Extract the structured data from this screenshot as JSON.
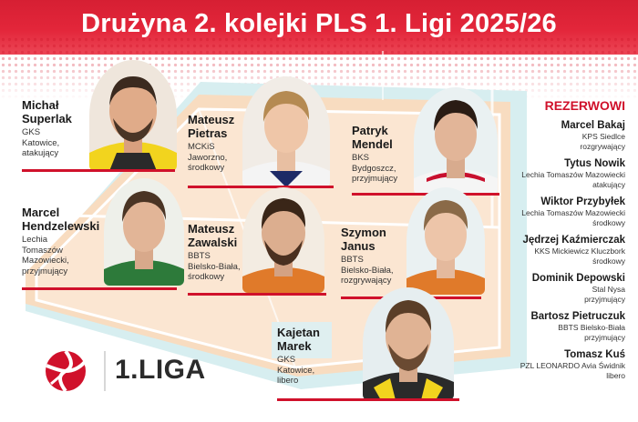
{
  "header": {
    "title": "Drużyna 2. kolejki PLS 1. Ligi 2025/26"
  },
  "starters": [
    {
      "name1": "Michał",
      "name2": "Superlak",
      "desc": [
        "GKS",
        "Katowice,",
        "atakujący"
      ]
    },
    {
      "name1": "Mateusz",
      "name2": "Pietras",
      "desc": [
        "MCKiS",
        "Jaworzno,",
        "środkowy"
      ]
    },
    {
      "name1": "Patryk",
      "name2": "Mendel",
      "desc": [
        "BKS",
        "Bydgoszcz,",
        "przyjmujący"
      ]
    },
    {
      "name1": "Marcel",
      "name2": "Hendzelewski",
      "desc": [
        "Lechia",
        "Tomaszów",
        "Mazowiecki,",
        "przyjmujący"
      ]
    },
    {
      "name1": "Mateusz",
      "name2": "Zawalski",
      "desc": [
        "BBTS",
        "Bielsko-Biała,",
        "środkowy"
      ]
    },
    {
      "name1": "Szymon",
      "name2": "Janus",
      "desc": [
        "BBTS",
        "Bielsko-Biała,",
        "rozgrywający"
      ]
    },
    {
      "name1": "Kajetan",
      "name2": "Marek",
      "desc": [
        "GKS",
        "Katowice,",
        "libero"
      ]
    }
  ],
  "reserves": {
    "title": "REZERWOWI",
    "items": [
      {
        "name": "Marcel Bakaj",
        "club": [
          "KPS Siedlce",
          "rozgrywający"
        ]
      },
      {
        "name": "Tytus Nowik",
        "club": [
          "Lechia Tomaszów Mazowiecki",
          "atakujący"
        ]
      },
      {
        "name": "Wiktor Przybyłek",
        "club": [
          "Lechia Tomaszów Mazowiecki",
          "środkowy"
        ]
      },
      {
        "name": "Jędrzej Kaźmierczak",
        "club": [
          "KKS Mickiewicz Kluczbork",
          "środkowy"
        ]
      },
      {
        "name": "Dominik Depowski",
        "club": [
          "Stal Nysa",
          "przyjmujący"
        ]
      },
      {
        "name": "Bartosz Pietruczuk",
        "club": [
          "BBTS Bielsko-Biała",
          "przyjmujący"
        ]
      },
      {
        "name": "Tomasz Kuś",
        "club": [
          "PZL LEONARDO Avia Świdnik",
          "libero"
        ]
      }
    ]
  },
  "logo": {
    "text": "1.LIGA"
  },
  "colors": {
    "accent": "#d0112b",
    "header": "#e3263a",
    "court": "#f8dcc0",
    "court_edge": "#cfe8ea"
  }
}
